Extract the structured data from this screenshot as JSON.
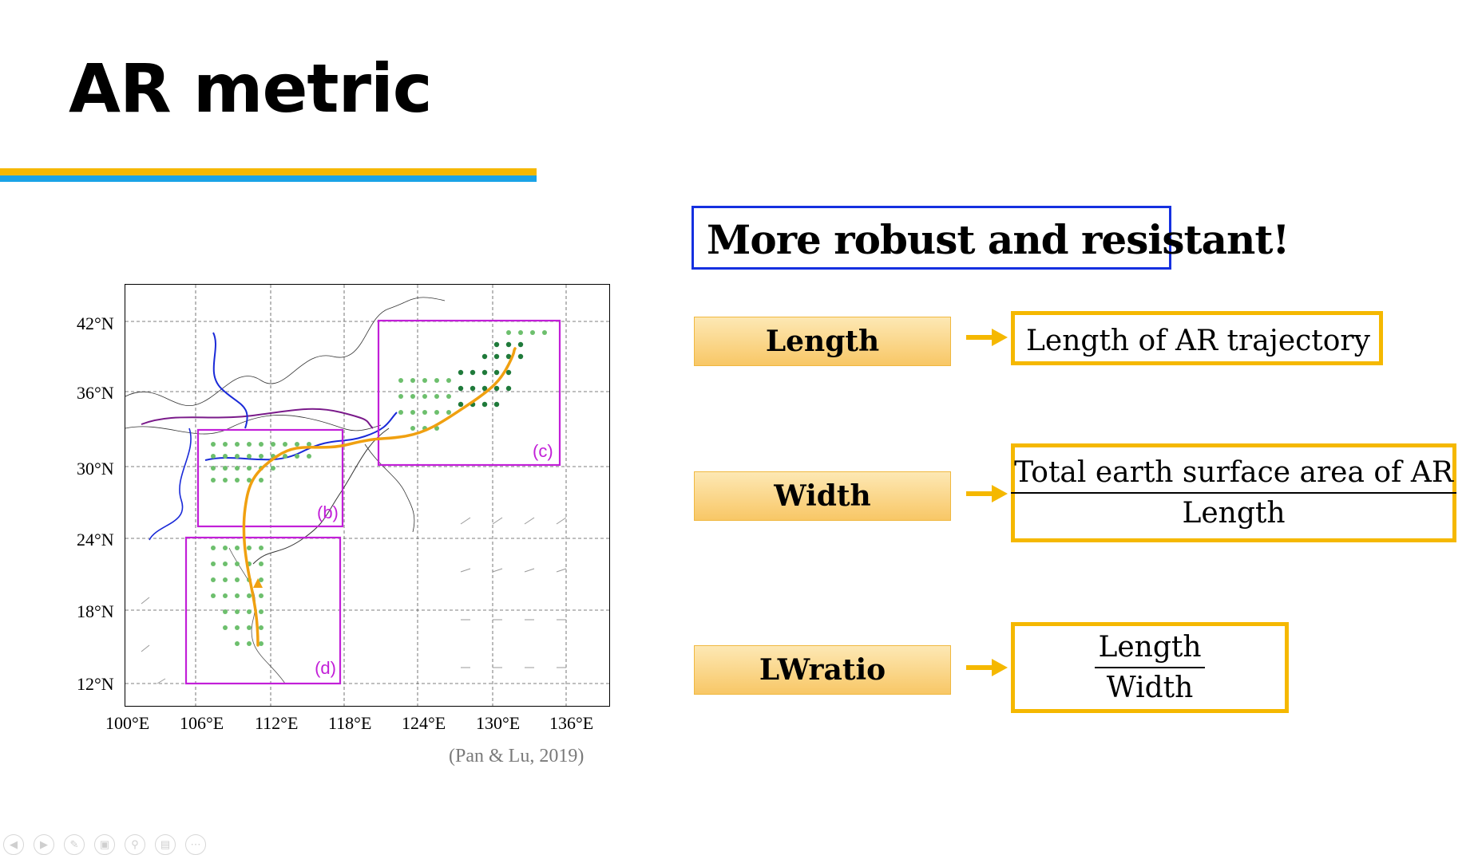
{
  "slide": {
    "title": "AR metric",
    "accent_colors": {
      "yellow": "#f5b800",
      "blue": "#1aa3e6",
      "callout_border": "#1530e0"
    }
  },
  "figure": {
    "y_axis_labels": [
      "42°N",
      "36°N",
      "30°N",
      "24°N",
      "18°N",
      "12°N"
    ],
    "x_axis_labels": [
      "100°E",
      "106°E",
      "112°E",
      "118°E",
      "124°E",
      "130°E",
      "136°E"
    ],
    "region_labels": [
      "(b)",
      "(c)",
      "(d)"
    ],
    "box_color": "#c21fd8",
    "trajectory_color": "#f0a010",
    "citation": "(Pan & Lu, 2019)"
  },
  "callout": {
    "text": "More robust and resistant!"
  },
  "metrics": [
    {
      "label": "Length",
      "definition": "Length of AR trajectory"
    },
    {
      "label": "Width",
      "numerator": "Total earth surface area of AR",
      "denominator": "Length"
    },
    {
      "label": "LWratio",
      "numerator": "Length",
      "denominator": "Width"
    }
  ],
  "toolbar": {
    "icons": [
      "previous-icon",
      "next-icon",
      "pen-icon",
      "slides-icon",
      "zoom-icon",
      "subtitles-icon",
      "more-icon"
    ]
  }
}
